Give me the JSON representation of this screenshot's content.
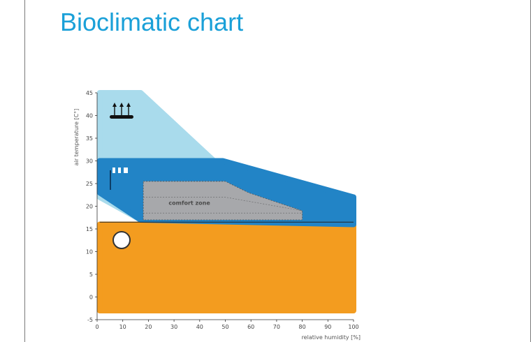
{
  "slide": {
    "title": "Bioclimatic chart"
  },
  "chart_data": {
    "type": "area",
    "title": "Bioclimatic chart",
    "xlabel": "relative humidity [%]",
    "ylabel": "air temperature [C°]",
    "xlim": [
      0,
      100
    ],
    "ylim": [
      -5,
      45
    ],
    "x_ticks": [
      0,
      10,
      20,
      30,
      40,
      50,
      60,
      70,
      80,
      90,
      100
    ],
    "y_ticks": [
      -5,
      0,
      5,
      10,
      15,
      20,
      25,
      30,
      35,
      40,
      45
    ],
    "grid": false,
    "zones": [
      {
        "id": "warming",
        "color": "#f39c1f",
        "icon": "sun-icon",
        "polygon": [
          [
            1,
            16
          ],
          [
            100,
            16
          ],
          [
            100,
            -3
          ],
          [
            1,
            -3
          ]
        ]
      },
      {
        "id": "evaporative-cooling",
        "color": "#a9dbec",
        "icon": "evaporation-icon",
        "polygon": [
          [
            1,
            45
          ],
          [
            17,
            45
          ],
          [
            57,
            24
          ],
          [
            17,
            17
          ],
          [
            1,
            22
          ]
        ]
      },
      {
        "id": "ventilation",
        "color": "#2284c6",
        "icon": "fan-icon",
        "polygon": [
          [
            1,
            30
          ],
          [
            49,
            30
          ],
          [
            100,
            22
          ],
          [
            100,
            16
          ],
          [
            17,
            17
          ],
          [
            1,
            23
          ]
        ]
      },
      {
        "id": "comfort-zone",
        "color": "#a7a8ab",
        "label": "comfort zone",
        "polygon": [
          [
            18,
            25.5
          ],
          [
            50,
            25.5
          ],
          [
            59,
            23
          ],
          [
            80,
            19
          ],
          [
            80,
            17
          ],
          [
            18,
            17
          ]
        ]
      }
    ]
  }
}
